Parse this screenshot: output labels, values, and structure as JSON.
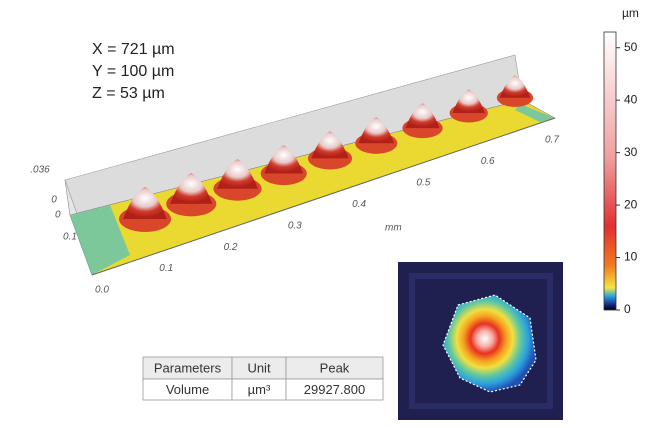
{
  "annotations": [
    "X = 721 µm",
    "Y = 100 µm",
    "Z = 53 µm"
  ],
  "surface_axes": {
    "x_ticks": [
      "0.0",
      "0.1",
      "0.2",
      "0.3",
      "0.4",
      "0.5",
      "0.6",
      "0.7"
    ],
    "x_unit": "mm",
    "z_ticks": [
      ".036",
      "0"
    ],
    "y_ticks": [
      "0",
      "0.1"
    ]
  },
  "colorbar": {
    "unit": "µm",
    "lim": [
      0,
      53
    ],
    "ticks": [
      0,
      10,
      20,
      30,
      40,
      50
    ]
  },
  "table": {
    "header": [
      "Parameters",
      "Unit",
      "Peak"
    ],
    "rows": [
      [
        "Volume",
        "µm³",
        "29927.800"
      ]
    ]
  }
}
